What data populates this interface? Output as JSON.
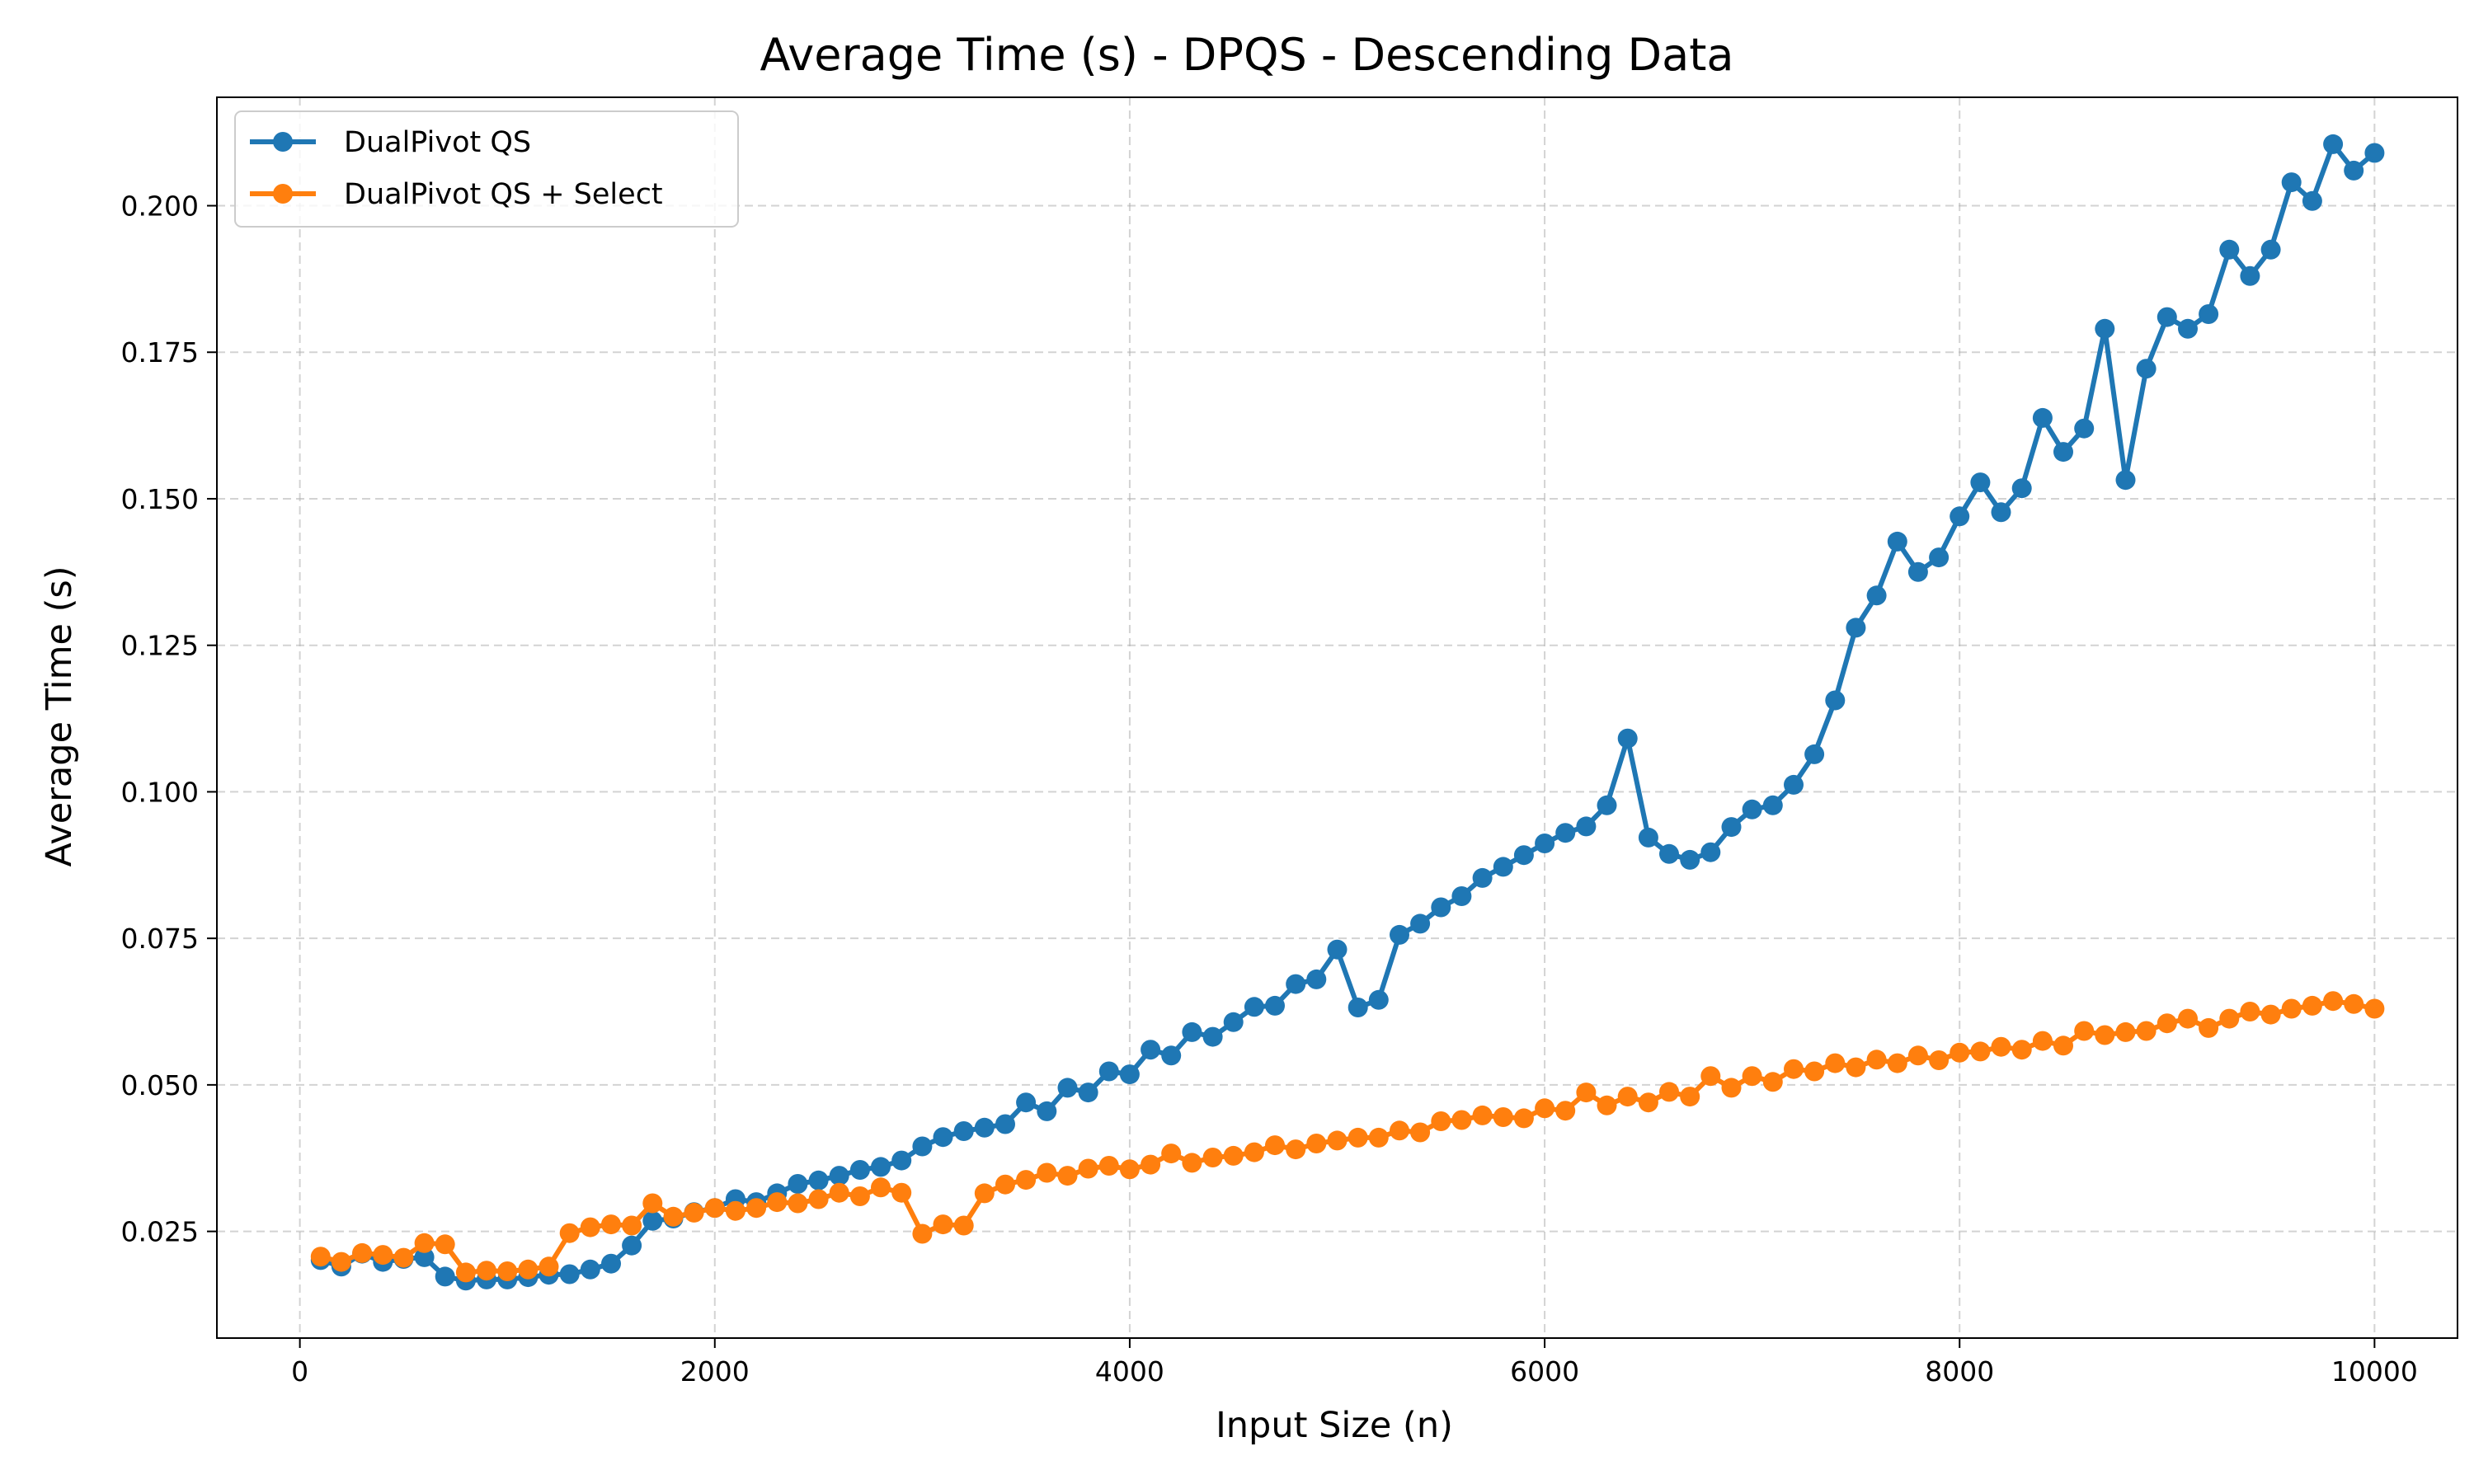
{
  "chart_data": {
    "type": "line",
    "title": "Average Time (s) - DPQS - Descending Data",
    "xlabel": "Input Size (n)",
    "ylabel": "Average Time (s)",
    "xlim": [
      -400,
      10400
    ],
    "ylim": [
      0.0068,
      0.2185
    ],
    "xticks": [
      0,
      2000,
      4000,
      6000,
      8000,
      10000
    ],
    "yticks": [
      0.025,
      0.05,
      0.075,
      0.1,
      0.125,
      0.15,
      0.175,
      0.2
    ],
    "xtick_labels": [
      "0",
      "2000",
      "4000",
      "6000",
      "8000",
      "10000"
    ],
    "ytick_labels": [
      "0.025",
      "0.050",
      "0.075",
      "0.100",
      "0.125",
      "0.150",
      "0.175",
      "0.200"
    ],
    "grid": true,
    "legend_position": "top-left",
    "x": [
      100,
      200,
      300,
      400,
      500,
      600,
      700,
      800,
      900,
      1000,
      1100,
      1200,
      1300,
      1400,
      1500,
      1600,
      1700,
      1800,
      1900,
      2000,
      2100,
      2200,
      2300,
      2400,
      2500,
      2600,
      2700,
      2800,
      2900,
      3000,
      3100,
      3200,
      3300,
      3400,
      3500,
      3600,
      3700,
      3800,
      3900,
      4000,
      4100,
      4200,
      4300,
      4400,
      4500,
      4600,
      4700,
      4800,
      4900,
      5000,
      5100,
      5200,
      5300,
      5400,
      5500,
      5600,
      5700,
      5800,
      5900,
      6000,
      6100,
      6200,
      6300,
      6400,
      6500,
      6600,
      6700,
      6800,
      6900,
      7000,
      7100,
      7200,
      7300,
      7400,
      7500,
      7600,
      7700,
      7800,
      7900,
      8000,
      8100,
      8200,
      8300,
      8400,
      8500,
      8600,
      8700,
      8800,
      8900,
      9000,
      9100,
      9200,
      9300,
      9400,
      9500,
      9600,
      9700,
      9800,
      9900,
      10000
    ],
    "series": [
      {
        "name": "DualPivot QS",
        "color": "#1f77b4",
        "values": [
          0.0201,
          0.019,
          0.0212,
          0.0198,
          0.0203,
          0.0206,
          0.0173,
          0.0166,
          0.0168,
          0.0168,
          0.0172,
          0.0176,
          0.0177,
          0.0185,
          0.0195,
          0.0226,
          0.0268,
          0.0272,
          0.0283,
          0.029,
          0.0305,
          0.03,
          0.0315,
          0.0331,
          0.0337,
          0.0345,
          0.0355,
          0.036,
          0.0371,
          0.0395,
          0.0411,
          0.0421,
          0.0427,
          0.0433,
          0.047,
          0.0455,
          0.0495,
          0.0487,
          0.0523,
          0.0518,
          0.056,
          0.055,
          0.059,
          0.0582,
          0.0607,
          0.0633,
          0.0635,
          0.0672,
          0.068,
          0.0731,
          0.0632,
          0.0645,
          0.0756,
          0.0775,
          0.0803,
          0.0822,
          0.0853,
          0.0872,
          0.0892,
          0.0912,
          0.093,
          0.0941,
          0.0977,
          0.1091,
          0.0922,
          0.0894,
          0.0884,
          0.0897,
          0.094,
          0.097,
          0.0977,
          0.1012,
          0.1064,
          0.1156,
          0.128,
          0.1335,
          0.1427,
          0.1375,
          0.14,
          0.147,
          0.1528,
          0.1477,
          0.1518,
          0.1638,
          0.158,
          0.162,
          0.179,
          0.1532,
          0.1722,
          0.181,
          0.179,
          0.1815,
          0.1925,
          0.188,
          0.1925,
          0.204,
          0.2008,
          0.2105,
          0.206,
          0.209
        ]
      },
      {
        "name": "DualPivot QS + Select",
        "color": "#ff7f0e",
        "values": [
          0.0207,
          0.0198,
          0.0213,
          0.021,
          0.0205,
          0.023,
          0.0228,
          0.018,
          0.0183,
          0.0182,
          0.0185,
          0.019,
          0.0247,
          0.0257,
          0.0262,
          0.026,
          0.0298,
          0.0275,
          0.0282,
          0.029,
          0.0285,
          0.029,
          0.03,
          0.0298,
          0.0305,
          0.0316,
          0.031,
          0.0325,
          0.0316,
          0.0246,
          0.0262,
          0.026,
          0.0315,
          0.033,
          0.0338,
          0.035,
          0.0345,
          0.0357,
          0.0362,
          0.0356,
          0.0364,
          0.0383,
          0.0367,
          0.0376,
          0.0379,
          0.0385,
          0.0397,
          0.039,
          0.04,
          0.0405,
          0.041,
          0.041,
          0.0422,
          0.0419,
          0.0438,
          0.044,
          0.0448,
          0.0445,
          0.0443,
          0.046,
          0.0456,
          0.0487,
          0.0465,
          0.048,
          0.047,
          0.0488,
          0.048,
          0.0515,
          0.0495,
          0.0515,
          0.0505,
          0.0527,
          0.0523,
          0.0537,
          0.053,
          0.0543,
          0.0537,
          0.055,
          0.0542,
          0.0555,
          0.0557,
          0.0565,
          0.056,
          0.0575,
          0.0567,
          0.0592,
          0.0585,
          0.059,
          0.0592,
          0.0605,
          0.0613,
          0.0597,
          0.0613,
          0.0625,
          0.062,
          0.063,
          0.0635,
          0.0643,
          0.0638,
          0.063
        ]
      }
    ]
  }
}
